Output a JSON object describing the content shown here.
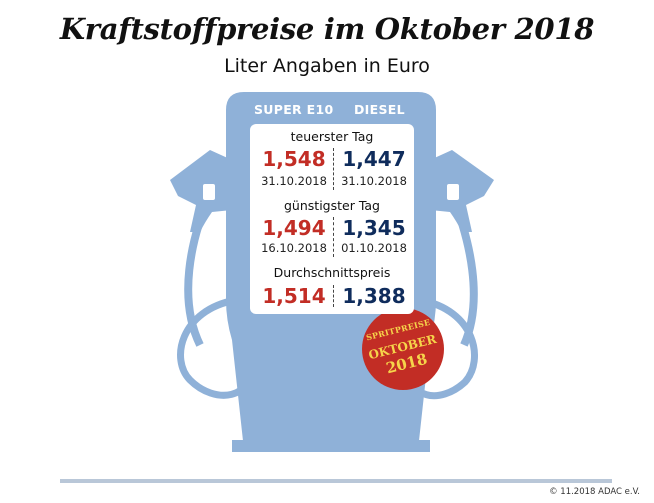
{
  "title": "Kraftstoffpreise im Oktober 2018",
  "subtitle": "Liter Angaben in Euro",
  "columns": {
    "e10": "SUPER E10",
    "diesel": "DIESEL"
  },
  "sections": [
    {
      "label": "teuerster Tag",
      "e10_value": "1,548",
      "e10_date": "31.10.2018",
      "diesel_value": "1,447",
      "diesel_date": "31.10.2018"
    },
    {
      "label": "günstigster Tag",
      "e10_value": "1,494",
      "e10_date": "16.10.2018",
      "diesel_value": "1,345",
      "diesel_date": "01.10.2018"
    },
    {
      "label": "Durchschnittspreis",
      "e10_value": "1,514",
      "diesel_value": "1,388"
    }
  ],
  "badge": {
    "line1": "SPRITPREISE",
    "line2": "OKTOBER",
    "line3": "2018"
  },
  "credit": "© 11.2018 ADAC e.V.",
  "colors": {
    "pump": "#8fb1d8",
    "e10": "#c22d25",
    "diesel": "#0f2c5c",
    "badge": "#c22d25",
    "badge_text": "#f6d44a"
  }
}
